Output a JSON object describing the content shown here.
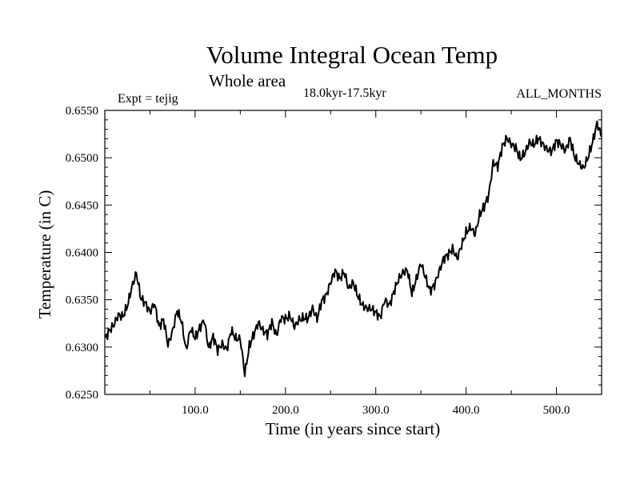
{
  "chart_data": {
    "type": "line",
    "title": "Volume Integral Ocean Temp",
    "subtitle": "Whole area",
    "period": "18.0kyr-17.5kyr",
    "expt": "Expt = tejig",
    "months": "ALL_MONTHS",
    "xlabel": "Time (in years since start)",
    "ylabel": "Temperature (in C)",
    "xlim": [
      0,
      550
    ],
    "ylim": [
      0.625,
      0.655
    ],
    "xticks": [
      100,
      200,
      300,
      400,
      500
    ],
    "xtick_labels": [
      "100.0",
      "200.0",
      "300.0",
      "400.0",
      "500.0"
    ],
    "yticks": [
      0.625,
      0.63,
      0.635,
      0.64,
      0.645,
      0.65,
      0.655
    ],
    "ytick_labels": [
      "0.6250",
      "0.6300",
      "0.6350",
      "0.6400",
      "0.6450",
      "0.6500",
      "0.6550"
    ],
    "series": [
      {
        "name": "Volume integral ocean temperature",
        "x": [
          0,
          5,
          10,
          15,
          20,
          25,
          30,
          35,
          40,
          45,
          50,
          55,
          60,
          65,
          70,
          75,
          80,
          85,
          90,
          95,
          100,
          105,
          110,
          115,
          120,
          125,
          130,
          135,
          140,
          145,
          150,
          155,
          160,
          165,
          170,
          175,
          180,
          185,
          190,
          195,
          200,
          205,
          210,
          215,
          220,
          225,
          230,
          235,
          240,
          245,
          250,
          255,
          260,
          265,
          270,
          275,
          280,
          285,
          290,
          295,
          300,
          305,
          310,
          315,
          320,
          325,
          330,
          335,
          340,
          345,
          350,
          355,
          360,
          365,
          370,
          375,
          380,
          385,
          390,
          395,
          400,
          405,
          410,
          415,
          420,
          425,
          430,
          435,
          440,
          445,
          450,
          455,
          460,
          465,
          470,
          475,
          480,
          485,
          490,
          495,
          500,
          505,
          510,
          515,
          520,
          525,
          530,
          535,
          540,
          545,
          550
        ],
        "y": [
          0.6308,
          0.6318,
          0.6325,
          0.6335,
          0.6332,
          0.6342,
          0.6362,
          0.6378,
          0.6352,
          0.6348,
          0.6338,
          0.6346,
          0.632,
          0.6328,
          0.6302,
          0.6318,
          0.634,
          0.6328,
          0.6296,
          0.6318,
          0.6308,
          0.632,
          0.633,
          0.63,
          0.6312,
          0.6296,
          0.6302,
          0.6296,
          0.6318,
          0.631,
          0.631,
          0.6272,
          0.63,
          0.6312,
          0.6325,
          0.6318,
          0.6315,
          0.6328,
          0.6312,
          0.633,
          0.6328,
          0.6332,
          0.6322,
          0.633,
          0.6332,
          0.633,
          0.634,
          0.6328,
          0.6348,
          0.6355,
          0.637,
          0.6382,
          0.6372,
          0.6378,
          0.636,
          0.6368,
          0.6355,
          0.6346,
          0.6342,
          0.634,
          0.6335,
          0.633,
          0.635,
          0.6345,
          0.636,
          0.6372,
          0.6378,
          0.638,
          0.6355,
          0.6372,
          0.639,
          0.6375,
          0.636,
          0.6365,
          0.6378,
          0.6392,
          0.6398,
          0.6405,
          0.6395,
          0.6408,
          0.642,
          0.6425,
          0.6418,
          0.644,
          0.645,
          0.6462,
          0.6495,
          0.649,
          0.651,
          0.652,
          0.6515,
          0.6512,
          0.65,
          0.6505,
          0.6515,
          0.6512,
          0.652,
          0.6515,
          0.651,
          0.6508,
          0.6518,
          0.6512,
          0.6506,
          0.652,
          0.6502,
          0.6495,
          0.649,
          0.65,
          0.6515,
          0.6535,
          0.6522
        ]
      }
    ]
  }
}
